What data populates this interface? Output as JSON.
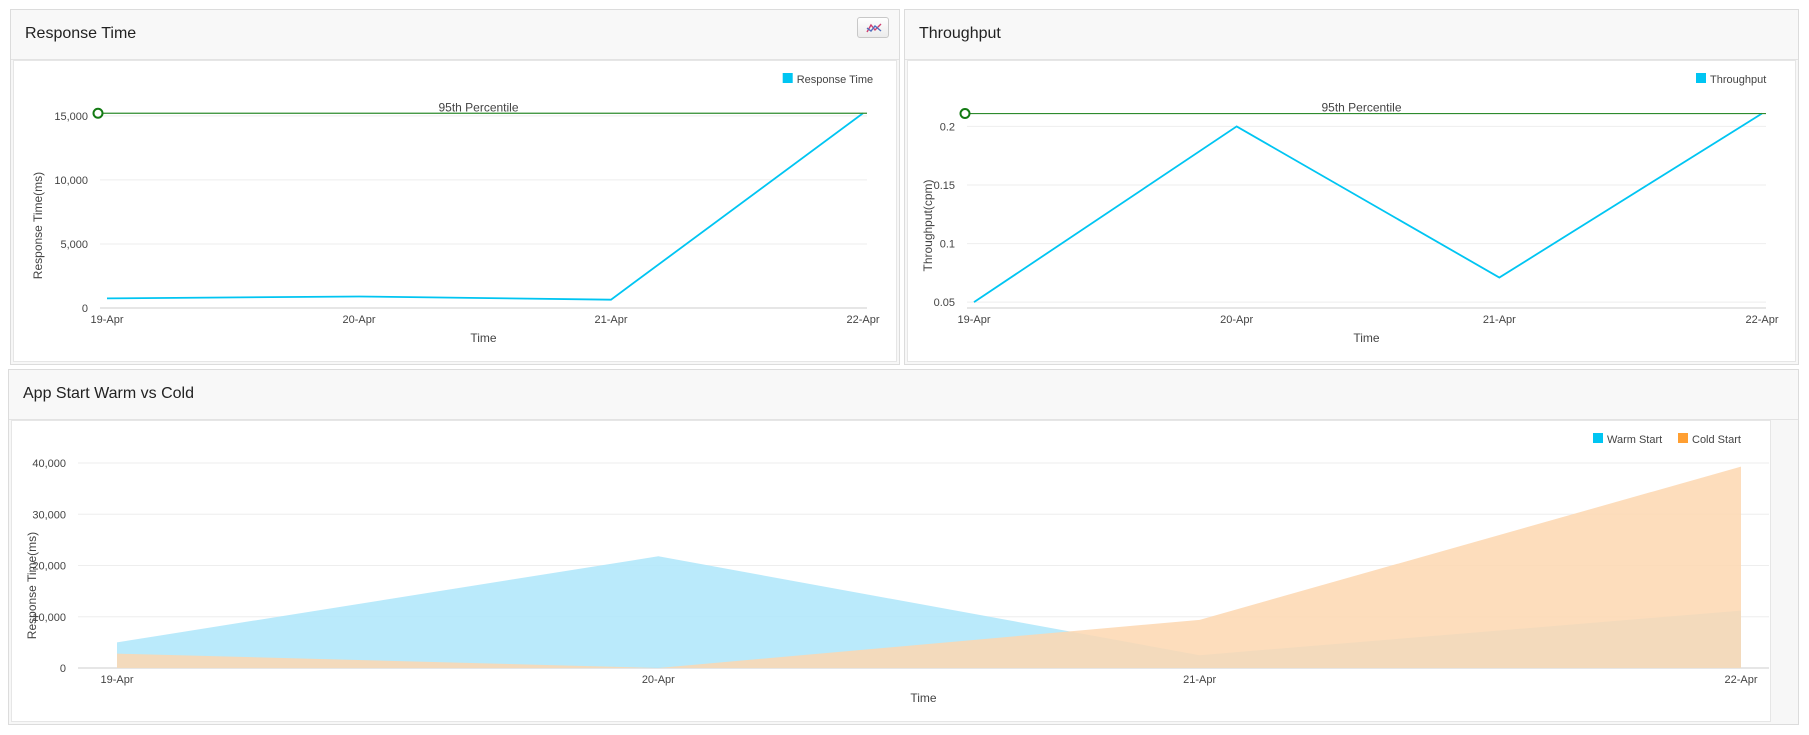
{
  "colors": {
    "series_blue": "#00c5f2",
    "series_orange": "#ff9f32",
    "area_blue": "#aee6fa",
    "area_orange": "#fdd7b0",
    "percentile_line": "#2e8b2e",
    "grid": "#eeeeee"
  },
  "panels": {
    "response_time": {
      "title": "Response Time",
      "toggle_icon": "chart-type-icon"
    },
    "throughput": {
      "title": "Throughput"
    },
    "app_start": {
      "title": "App Start Warm vs Cold"
    }
  },
  "chart_data": [
    {
      "type": "line",
      "title": "Response Time",
      "xlabel": "Time",
      "ylabel": "Response Time(ms)",
      "categories": [
        "19-Apr",
        "20-Apr",
        "21-Apr",
        "22-Apr"
      ],
      "series": [
        {
          "name": "Response Time",
          "values": [
            750,
            900,
            650,
            15200
          ]
        }
      ],
      "yticks": [
        0,
        5000,
        10000,
        15000
      ],
      "ytick_labels": [
        "0",
        "5,000",
        "10,000",
        "15,000"
      ],
      "ylim": [
        0,
        16000
      ],
      "reference_line": {
        "label": "95th Percentile",
        "value": 15200
      },
      "legend": "top-right",
      "grid": true
    },
    {
      "type": "line",
      "title": "Throughput",
      "xlabel": "Time",
      "ylabel": "Throughput(cpm)",
      "categories": [
        "19-Apr",
        "20-Apr",
        "21-Apr",
        "22-Apr"
      ],
      "series": [
        {
          "name": "Throughput",
          "values": [
            0.05,
            0.2,
            0.071,
            0.211
          ]
        }
      ],
      "yticks": [
        0.05,
        0.1,
        0.15,
        0.2
      ],
      "ytick_labels": [
        "0.05",
        "0.1",
        "0.15",
        "0.2"
      ],
      "ylim": [
        0.045,
        0.22
      ],
      "reference_line": {
        "label": "95th Percentile",
        "value": 0.211
      },
      "legend": "top-right",
      "grid": true
    },
    {
      "type": "area",
      "title": "App Start Warm vs Cold",
      "xlabel": "Time",
      "ylabel": "Response Time(ms)",
      "categories": [
        "19-Apr",
        "20-Apr",
        "21-Apr",
        "22-Apr"
      ],
      "series": [
        {
          "name": "Warm Start",
          "values": [
            5000,
            21800,
            2500,
            11200
          ]
        },
        {
          "name": "Cold Start",
          "values": [
            2800,
            0,
            9400,
            39300
          ]
        }
      ],
      "yticks": [
        0,
        10000,
        20000,
        30000,
        40000
      ],
      "ytick_labels": [
        "0",
        "10,000",
        "20,000",
        "30,000",
        "40,000"
      ],
      "ylim": [
        0,
        40000
      ],
      "legend": "top-right",
      "grid": true
    }
  ]
}
